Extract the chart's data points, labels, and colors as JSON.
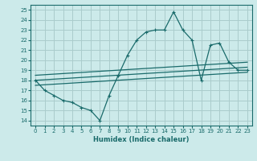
{
  "xlabel": "Humidex (Indice chaleur)",
  "bg_color": "#cceaea",
  "grid_color": "#aacccc",
  "line_color": "#1a6b6b",
  "xlim": [
    -0.5,
    23.5
  ],
  "ylim": [
    13.5,
    25.5
  ],
  "xticks": [
    0,
    1,
    2,
    3,
    4,
    5,
    6,
    7,
    8,
    9,
    10,
    11,
    12,
    13,
    14,
    15,
    16,
    17,
    18,
    19,
    20,
    21,
    22,
    23
  ],
  "yticks": [
    14,
    15,
    16,
    17,
    18,
    19,
    20,
    21,
    22,
    23,
    24,
    25
  ],
  "line1_x": [
    0,
    1,
    2,
    3,
    4,
    5,
    6,
    7,
    8,
    9,
    10,
    11,
    12,
    13,
    14,
    15,
    16,
    17,
    18,
    19,
    20,
    21,
    22,
    23
  ],
  "line1_y": [
    18,
    17,
    16.5,
    16,
    15.8,
    15.3,
    15,
    14,
    16.5,
    18.5,
    20.5,
    22,
    22.8,
    23,
    23,
    24.8,
    23,
    22,
    18,
    21.5,
    21.7,
    19.8,
    19,
    19
  ],
  "line2_x": [
    0,
    23
  ],
  "line2_y": [
    18.0,
    19.3
  ],
  "line3_x": [
    0,
    23
  ],
  "line3_y": [
    17.5,
    18.8
  ],
  "line4_x": [
    0,
    23
  ],
  "line4_y": [
    18.5,
    19.8
  ],
  "marker": "+"
}
